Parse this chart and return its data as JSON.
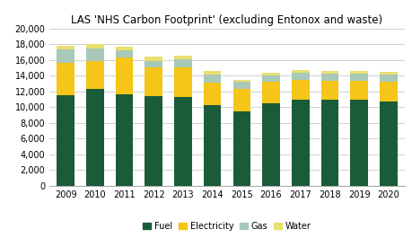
{
  "title": "LAS 'NHS Carbon Footprint' (excluding Entonox and waste)",
  "years": [
    2009,
    2010,
    2011,
    2012,
    2013,
    2014,
    2015,
    2016,
    2017,
    2018,
    2019,
    2020
  ],
  "fuel": [
    11500,
    12300,
    11600,
    11400,
    11300,
    10300,
    9500,
    10500,
    11000,
    11000,
    11000,
    10700
  ],
  "electricity": [
    4100,
    3600,
    4700,
    3700,
    3800,
    2800,
    2800,
    2700,
    2500,
    2400,
    2400,
    2500
  ],
  "gas": [
    1700,
    1600,
    900,
    800,
    1000,
    1100,
    900,
    800,
    900,
    900,
    900,
    900
  ],
  "water": [
    450,
    500,
    500,
    500,
    500,
    350,
    300,
    400,
    350,
    350,
    350,
    380
  ],
  "fuel_color": "#1a5c38",
  "electricity_color": "#f5c518",
  "gas_color": "#a8c8b8",
  "water_color": "#e8e070",
  "ylim": [
    0,
    20000
  ],
  "yticks": [
    0,
    2000,
    4000,
    6000,
    8000,
    10000,
    12000,
    14000,
    16000,
    18000,
    20000
  ],
  "background_color": "#ffffff",
  "grid_color": "#d0d0d0",
  "title_fontsize": 8.5,
  "tick_fontsize": 7.0
}
